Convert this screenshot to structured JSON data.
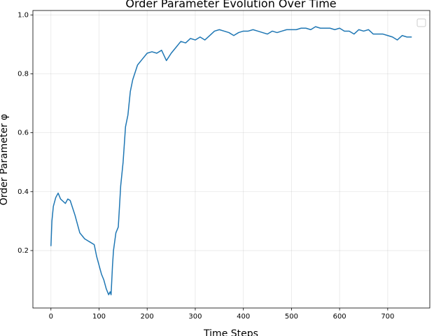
{
  "chart_data": {
    "type": "line",
    "title": "Order Parameter Evolution Over Time",
    "x_label": "Time Steps",
    "y_label": "Order Parameter φ",
    "x": [
      0,
      2,
      5,
      10,
      15,
      20,
      30,
      35,
      40,
      50,
      55,
      60,
      65,
      70,
      80,
      90,
      95,
      100,
      105,
      110,
      115,
      120,
      123,
      125,
      128,
      130,
      135,
      140,
      145,
      150,
      155,
      160,
      165,
      170,
      180,
      190,
      200,
      210,
      220,
      230,
      240,
      250,
      260,
      270,
      280,
      290,
      300,
      310,
      320,
      330,
      340,
      350,
      360,
      370,
      380,
      390,
      400,
      410,
      420,
      430,
      440,
      450,
      460,
      470,
      480,
      490,
      500,
      510,
      520,
      530,
      540,
      550,
      560,
      570,
      580,
      590,
      600,
      610,
      620,
      630,
      640,
      650,
      660,
      670,
      680,
      690,
      700,
      710,
      720,
      730,
      740,
      750
    ],
    "series": [
      {
        "name": "Order Parameter φ",
        "color": "#1f77b4",
        "values": [
          0.215,
          0.3,
          0.35,
          0.38,
          0.395,
          0.375,
          0.36,
          0.375,
          0.37,
          0.32,
          0.29,
          0.26,
          0.25,
          0.24,
          0.23,
          0.22,
          0.18,
          0.15,
          0.12,
          0.1,
          0.07,
          0.05,
          0.06,
          0.05,
          0.15,
          0.2,
          0.26,
          0.28,
          0.42,
          0.5,
          0.62,
          0.66,
          0.74,
          0.78,
          0.83,
          0.85,
          0.87,
          0.875,
          0.87,
          0.88,
          0.845,
          0.87,
          0.89,
          0.91,
          0.905,
          0.92,
          0.915,
          0.925,
          0.915,
          0.93,
          0.945,
          0.95,
          0.945,
          0.94,
          0.93,
          0.94,
          0.945,
          0.945,
          0.95,
          0.945,
          0.94,
          0.935,
          0.945,
          0.94,
          0.945,
          0.95,
          0.95,
          0.95,
          0.955,
          0.955,
          0.95,
          0.96,
          0.955,
          0.955,
          0.955,
          0.95,
          0.955,
          0.945,
          0.945,
          0.935,
          0.95,
          0.945,
          0.95,
          0.935,
          0.935,
          0.935,
          0.93,
          0.925,
          0.915,
          0.93,
          0.925,
          0.925
        ]
      }
    ],
    "xlim": [
      -37.5,
      787.5
    ],
    "ylim": [
      0.005,
      1.015
    ],
    "xticks": [
      0,
      100,
      200,
      300,
      400,
      500,
      600,
      700
    ],
    "yticks": [
      0.2,
      0.4,
      0.6,
      0.8,
      {
        "value": 1,
        "label": "1.0"
      }
    ],
    "grid": true
  }
}
